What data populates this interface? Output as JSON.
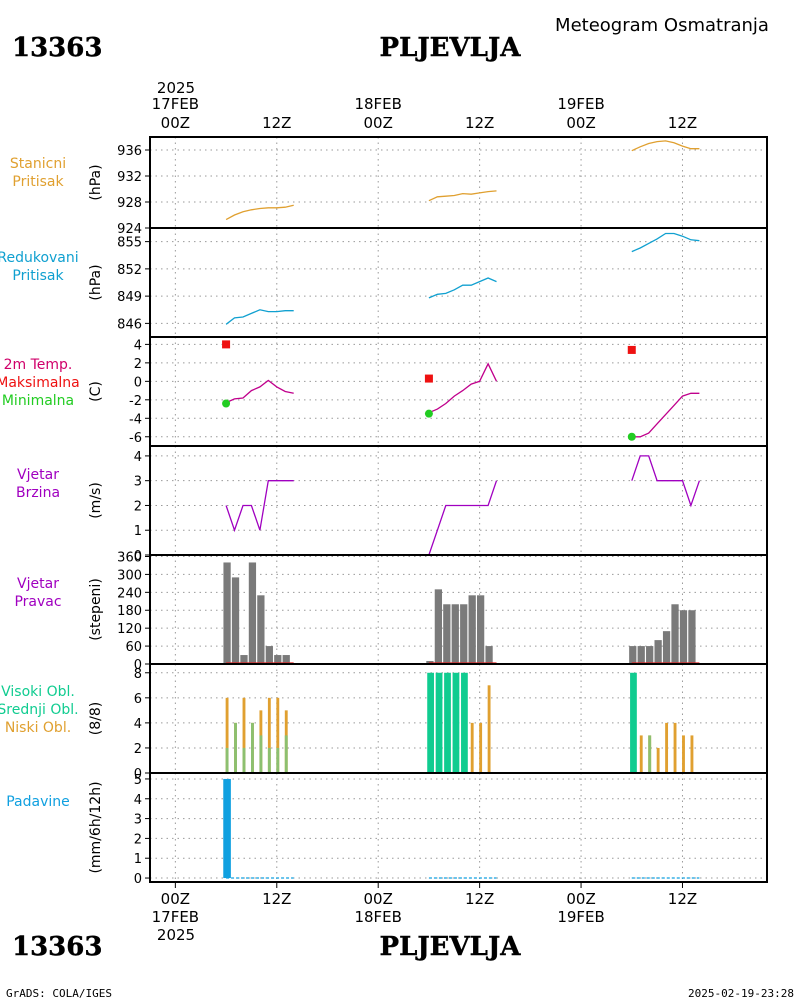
{
  "header": {
    "station_id": "13363",
    "station_name": "PLJEVLJA",
    "subtitle": "Meteogram Osmatranja"
  },
  "footer": {
    "station_id": "13363",
    "station_name": "PLJEVLJA",
    "credit": "GrADS: COLA/IGES",
    "timestamp": "2025-02-19-23:28"
  },
  "time_axis": {
    "year": "2025",
    "top_day_labels": [
      "17FEB",
      "18FEB",
      "19FEB"
    ],
    "hour_labels": [
      "00Z",
      "12Z",
      "00Z",
      "12Z",
      "00Z",
      "12Z"
    ],
    "bottom_day_labels": [
      "17FEB",
      "18FEB",
      "19FEB"
    ],
    "range_hours": [
      -3,
      70
    ]
  },
  "panel_titles": {
    "station_pressure": [
      "Stanicni",
      "Pritisak"
    ],
    "reduced_pressure": [
      "Redukovani",
      "Pritisak"
    ],
    "temperature": [
      "2m Temp.",
      "Maksimalna",
      "Minimalna"
    ],
    "wind_speed": [
      "Vjetar",
      "Brzina"
    ],
    "wind_direction": [
      "Vjetar",
      "Pravac"
    ],
    "clouds": [
      "Visoki Obl.",
      "Srednji Obl.",
      "Niski Obl."
    ],
    "precipitation": [
      "Padavine"
    ]
  },
  "colors": {
    "station_pressure": "#e0a030",
    "reduced_pressure": "#10a0d0",
    "temperature_label": "#d0006a",
    "temperature_line": "#c0008c",
    "max_marker": "#ee1111",
    "min_marker": "#22cc22",
    "wind": "#a000c0",
    "wind_dir_bar": "#7a7a7a",
    "cloud_high": "#10cc90",
    "cloud_mid": "#8cc070",
    "cloud_low": "#e0a030",
    "precip": "#10a0e0"
  },
  "chart_data": [
    {
      "id": "station_pressure",
      "type": "line",
      "ylabel": "(hPa)",
      "ylim": [
        924,
        938
      ],
      "yticks": [
        924,
        928,
        932,
        936
      ],
      "x": [
        6,
        7,
        8,
        9,
        10,
        11,
        12,
        13,
        14,
        30,
        31,
        32,
        33,
        34,
        35,
        36,
        37,
        38,
        54,
        55,
        56,
        57,
        58,
        59,
        60,
        61,
        62
      ],
      "segments": [
        [
          [
            6,
            925.3
          ],
          [
            7,
            926.0
          ],
          [
            8,
            926.5
          ],
          [
            9,
            926.8
          ],
          [
            10,
            927.0
          ],
          [
            11,
            927.1
          ],
          [
            12,
            927.1
          ],
          [
            13,
            927.2
          ],
          [
            14,
            927.5
          ]
        ],
        [
          [
            30,
            928.2
          ],
          [
            31,
            928.8
          ],
          [
            32,
            928.9
          ],
          [
            33,
            929.0
          ],
          [
            34,
            929.3
          ],
          [
            35,
            929.2
          ],
          [
            36,
            929.4
          ],
          [
            37,
            929.6
          ],
          [
            38,
            929.7
          ]
        ],
        [
          [
            54,
            935.9
          ],
          [
            55,
            936.5
          ],
          [
            56,
            937.0
          ],
          [
            57,
            937.3
          ],
          [
            58,
            937.4
          ],
          [
            59,
            937.1
          ],
          [
            60,
            936.6
          ],
          [
            61,
            936.2
          ],
          [
            62,
            936.2
          ]
        ]
      ]
    },
    {
      "id": "reduced_pressure",
      "type": "line",
      "ylabel": "(hPa)",
      "ylim": [
        844.5,
        856.5
      ],
      "yticks": [
        846,
        849,
        852,
        855
      ],
      "segments": [
        [
          [
            6,
            845.9
          ],
          [
            7,
            846.6
          ],
          [
            8,
            846.7
          ],
          [
            9,
            847.1
          ],
          [
            10,
            847.5
          ],
          [
            11,
            847.3
          ],
          [
            12,
            847.3
          ],
          [
            13,
            847.4
          ],
          [
            14,
            847.4
          ]
        ],
        [
          [
            30,
            848.8
          ],
          [
            31,
            849.2
          ],
          [
            32,
            849.3
          ],
          [
            33,
            849.7
          ],
          [
            34,
            850.2
          ],
          [
            35,
            850.2
          ],
          [
            36,
            850.6
          ],
          [
            37,
            851.0
          ],
          [
            38,
            850.6
          ]
        ],
        [
          [
            54,
            853.9
          ],
          [
            55,
            854.3
          ],
          [
            56,
            854.8
          ],
          [
            57,
            855.3
          ],
          [
            58,
            855.9
          ],
          [
            59,
            855.9
          ],
          [
            60,
            855.6
          ],
          [
            61,
            855.2
          ],
          [
            62,
            855.1
          ]
        ]
      ]
    },
    {
      "id": "temperature",
      "type": "line",
      "ylabel": "(C)",
      "ylim": [
        -7,
        4.8
      ],
      "yticks": [
        -6,
        -4,
        -2,
        0,
        2,
        4
      ],
      "segments": [
        [
          [
            6,
            -2.3
          ],
          [
            7,
            -1.9
          ],
          [
            8,
            -1.8
          ],
          [
            9,
            -1.0
          ],
          [
            10,
            -0.6
          ],
          [
            11,
            0.1
          ],
          [
            12,
            -0.6
          ],
          [
            13,
            -1.1
          ],
          [
            14,
            -1.3
          ]
        ],
        [
          [
            30,
            -3.4
          ],
          [
            31,
            -3.0
          ],
          [
            32,
            -2.4
          ],
          [
            33,
            -1.6
          ],
          [
            34,
            -1.0
          ],
          [
            35,
            -0.3
          ],
          [
            36,
            0.0
          ],
          [
            37,
            1.9
          ],
          [
            38,
            0.0
          ]
        ],
        [
          [
            54,
            -6.0
          ],
          [
            55,
            -6.0
          ],
          [
            56,
            -5.6
          ],
          [
            57,
            -4.6
          ],
          [
            58,
            -3.6
          ],
          [
            59,
            -2.6
          ],
          [
            60,
            -1.6
          ],
          [
            61,
            -1.3
          ],
          [
            62,
            -1.3
          ]
        ]
      ],
      "max_points": [
        [
          6,
          4.0
        ],
        [
          30,
          0.3
        ],
        [
          54,
          3.4
        ]
      ],
      "min_points": [
        [
          6,
          -2.4
        ],
        [
          30,
          -3.5
        ],
        [
          54,
          -6.0
        ]
      ]
    },
    {
      "id": "wind_speed",
      "type": "line",
      "ylabel": "(m/s)",
      "ylim": [
        0,
        4.4
      ],
      "yticks": [
        0,
        1,
        2,
        3,
        4
      ],
      "segments": [
        [
          [
            6,
            2
          ],
          [
            7,
            1
          ],
          [
            8,
            2
          ],
          [
            9,
            2
          ],
          [
            10,
            1
          ],
          [
            11,
            3
          ],
          [
            12,
            3
          ],
          [
            13,
            3
          ],
          [
            14,
            3
          ]
        ],
        [
          [
            30,
            0
          ],
          [
            31,
            1
          ],
          [
            32,
            2
          ],
          [
            33,
            2
          ],
          [
            34,
            2
          ],
          [
            35,
            2
          ],
          [
            36,
            2
          ],
          [
            37,
            2
          ],
          [
            38,
            3
          ]
        ],
        [
          [
            54,
            3
          ],
          [
            55,
            4
          ],
          [
            56,
            4
          ],
          [
            57,
            3
          ],
          [
            58,
            3
          ],
          [
            59,
            3
          ],
          [
            60,
            3
          ],
          [
            61,
            2
          ],
          [
            62,
            3
          ]
        ]
      ]
    },
    {
      "id": "wind_direction",
      "type": "bar",
      "ylabel": "(stepeni)",
      "ylim": [
        0,
        365
      ],
      "yticks": [
        0,
        60,
        120,
        180,
        240,
        300,
        360
      ],
      "bars": [
        [
          6,
          340
        ],
        [
          7,
          290
        ],
        [
          8,
          30
        ],
        [
          9,
          340
        ],
        [
          10,
          230
        ],
        [
          11,
          60
        ],
        [
          12,
          30
        ],
        [
          13,
          30
        ],
        [
          30,
          10
        ],
        [
          31,
          250
        ],
        [
          32,
          200
        ],
        [
          33,
          200
        ],
        [
          34,
          200
        ],
        [
          35,
          230
        ],
        [
          36,
          230
        ],
        [
          37,
          60
        ],
        [
          54,
          60
        ],
        [
          55,
          60
        ],
        [
          56,
          60
        ],
        [
          57,
          80
        ],
        [
          58,
          110
        ],
        [
          59,
          200
        ],
        [
          60,
          180
        ],
        [
          61,
          180
        ]
      ],
      "baseline_ranges": [
        [
          6,
          14
        ],
        [
          30,
          38
        ],
        [
          54,
          62
        ]
      ]
    },
    {
      "id": "clouds",
      "type": "bar",
      "ylabel": "(8/8)",
      "ylim": [
        0,
        8.7
      ],
      "yticks": [
        0,
        2,
        4,
        6,
        8
      ],
      "high": [
        [
          6,
          0
        ],
        [
          7,
          0
        ],
        [
          8,
          0
        ],
        [
          9,
          0
        ],
        [
          10,
          0
        ],
        [
          11,
          0
        ],
        [
          12,
          0
        ],
        [
          13,
          0
        ],
        [
          30,
          8
        ],
        [
          31,
          8
        ],
        [
          32,
          8
        ],
        [
          33,
          8
        ],
        [
          34,
          8
        ],
        [
          35,
          0
        ],
        [
          36,
          0
        ],
        [
          37,
          0
        ],
        [
          54,
          8
        ],
        [
          55,
          0
        ],
        [
          56,
          0
        ],
        [
          57,
          0
        ],
        [
          58,
          0
        ],
        [
          59,
          0
        ],
        [
          60,
          0
        ],
        [
          61,
          0
        ]
      ],
      "mid": [
        [
          6,
          2
        ],
        [
          7,
          4
        ],
        [
          8,
          2
        ],
        [
          9,
          4
        ],
        [
          10,
          3
        ],
        [
          11,
          2
        ],
        [
          12,
          2
        ],
        [
          13,
          3
        ],
        [
          30,
          0
        ],
        [
          31,
          0
        ],
        [
          32,
          0
        ],
        [
          33,
          0
        ],
        [
          34,
          0
        ],
        [
          35,
          0
        ],
        [
          36,
          0
        ],
        [
          37,
          0
        ],
        [
          54,
          0
        ],
        [
          55,
          0
        ],
        [
          56,
          3
        ],
        [
          57,
          0
        ],
        [
          58,
          0
        ],
        [
          59,
          0
        ],
        [
          60,
          0
        ],
        [
          61,
          0
        ]
      ],
      "low": [
        [
          6,
          6
        ],
        [
          7,
          4
        ],
        [
          8,
          6
        ],
        [
          9,
          4
        ],
        [
          10,
          5
        ],
        [
          11,
          6
        ],
        [
          12,
          6
        ],
        [
          13,
          5
        ],
        [
          30,
          0
        ],
        [
          31,
          0
        ],
        [
          32,
          0
        ],
        [
          33,
          0
        ],
        [
          34,
          0
        ],
        [
          35,
          4
        ],
        [
          36,
          4
        ],
        [
          37,
          7
        ],
        [
          54,
          0
        ],
        [
          55,
          3
        ],
        [
          56,
          3
        ],
        [
          57,
          2
        ],
        [
          58,
          4
        ],
        [
          59,
          4
        ],
        [
          60,
          3
        ],
        [
          61,
          3
        ]
      ]
    },
    {
      "id": "precipitation",
      "type": "bar",
      "ylabel": "(mm/6h/12h)",
      "ylim": [
        -0.2,
        5.3
      ],
      "yticks": [
        0,
        1,
        2,
        3,
        4,
        5
      ],
      "bars": [
        [
          6,
          5.0
        ]
      ],
      "baseline_ranges": [
        [
          6,
          14
        ],
        [
          30,
          38
        ],
        [
          54,
          62
        ]
      ]
    }
  ]
}
